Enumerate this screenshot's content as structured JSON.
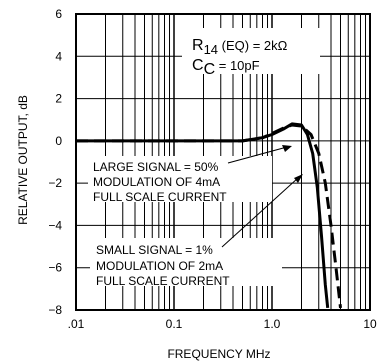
{
  "chart_data": {
    "type": "line",
    "xlabel": "FREQUENCY MHz",
    "ylabel": "RELATIVE OUTPUT, dB",
    "x_scale": "log",
    "xlim": [
      0.01,
      10
    ],
    "ylim": [
      -8,
      6
    ],
    "x_ticks": [
      {
        "value": 0.01,
        "label": ".01"
      },
      {
        "value": 0.1,
        "label": "0.1"
      },
      {
        "value": 1,
        "label": "1.0"
      },
      {
        "value": 10,
        "label": "10"
      }
    ],
    "y_ticks": [
      {
        "value": -8,
        "label": "−8"
      },
      {
        "value": -6,
        "label": "−6"
      },
      {
        "value": -4,
        "label": "−4"
      },
      {
        "value": -2,
        "label": "−2"
      },
      {
        "value": 0,
        "label": "0"
      },
      {
        "value": 2,
        "label": "2"
      },
      {
        "value": 4,
        "label": "4"
      },
      {
        "value": 6,
        "label": "6"
      }
    ],
    "grid": true,
    "series": [
      {
        "style": "dashed",
        "x": [
          0.01,
          0.1,
          0.5,
          0.8,
          1.0,
          1.3,
          1.6,
          2.0,
          2.5,
          3.0,
          3.5,
          4.0,
          4.5,
          5.0
        ],
        "y": [
          0,
          0,
          0,
          0.15,
          0.35,
          0.6,
          0.75,
          0.7,
          0.3,
          -0.6,
          -2.0,
          -4.0,
          -6.0,
          -7.9
        ]
      },
      {
        "style": "solid",
        "x": [
          0.01,
          0.1,
          0.5,
          0.8,
          1.0,
          1.3,
          1.6,
          2.0,
          2.3,
          2.6,
          2.9,
          3.2,
          3.5,
          3.7
        ],
        "y": [
          0,
          0,
          0,
          0.15,
          0.3,
          0.55,
          0.8,
          0.75,
          0.3,
          -0.6,
          -2.2,
          -4.5,
          -6.8,
          -7.9
        ]
      }
    ],
    "annotations": {
      "large_signal": [
        "LARGE SIGNAL = 50%",
        "MODULATION OF 4mA",
        "FULL SCALE CURRENT"
      ],
      "small_signal": [
        "SMALL SIGNAL = 1%",
        "MODULATION OF 2mA",
        "FULL SCALE CURRENT"
      ],
      "params": {
        "r_main": "R",
        "r_sub": "14",
        "r_rest": " (EQ) = 2kΩ",
        "c_main": "C",
        "c_sub": "C",
        "c_rest": " = 10pF"
      }
    }
  }
}
